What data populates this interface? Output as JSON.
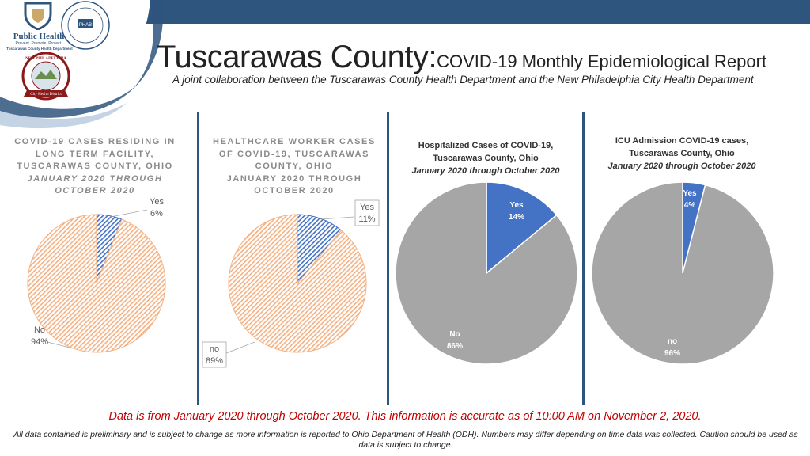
{
  "header": {
    "title_main": "Tuscarawas County:",
    "title_sub": "COVID-19 Monthly Epidemiological Report",
    "subtitle": "A joint collaboration between the Tuscarawas County Health Department and the New Philadelphia City Health Department"
  },
  "logos": {
    "tchd_name": "Public Health",
    "tchd_tagline": "Prevent. Promote. Protect.",
    "tchd_department": "Tuscarawas County Health Department",
    "phab_text": "PHAB",
    "nphd_name": "NEW PHILADELPHIA",
    "nphd_banner": "City Health District"
  },
  "colors": {
    "topbar": "#2e557e",
    "blue": "#4472c4",
    "orange": "#f4b183",
    "grey": "#a6a6a6",
    "red": "#c00000"
  },
  "chart_data": [
    {
      "type": "pie",
      "title_lines": [
        "COVID-19 CASES RESIDING IN",
        "LONG TERM FACILITY,",
        "TUSCARAWAS COUNTY, OHIO"
      ],
      "subtitle_lines": [
        "JANUARY 2020 THROUGH",
        "OCTOBER 2020"
      ],
      "categories": [
        "Yes",
        "No"
      ],
      "values": [
        6,
        94
      ],
      "labels": [
        [
          "Yes",
          "6%"
        ],
        [
          "No",
          "94%"
        ]
      ],
      "colors": [
        "#4472c4",
        "#f4b183"
      ]
    },
    {
      "type": "pie",
      "title_lines": [
        "HEALTHCARE WORKER CASES",
        "OF COVID-19, TUSCARAWAS",
        "COUNTY, OHIO"
      ],
      "subtitle_lines": [
        "JANUARY 2020 THROUGH",
        "OCTOBER 2020"
      ],
      "categories": [
        "Yes",
        "no"
      ],
      "values": [
        11,
        89
      ],
      "labels": [
        [
          "Yes",
          "11%"
        ],
        [
          "no",
          "89%"
        ]
      ],
      "colors": [
        "#4472c4",
        "#f4b183"
      ]
    },
    {
      "type": "pie",
      "title_lines": [
        "Hospitalized Cases of COVID-19,",
        "Tuscarawas County, Ohio"
      ],
      "subtitle_lines": [
        "January 2020 through October 2020"
      ],
      "categories": [
        "Yes",
        "No"
      ],
      "values": [
        14,
        86
      ],
      "labels": [
        [
          "Yes",
          "14%"
        ],
        [
          "No",
          "86%"
        ]
      ],
      "colors": [
        "#4472c4",
        "#a6a6a6"
      ]
    },
    {
      "type": "pie",
      "title_lines": [
        "ICU Admission COVID-19 cases,",
        "Tuscarawas County, Ohio"
      ],
      "subtitle_lines": [
        "January 2020 through October 2020"
      ],
      "categories": [
        "Yes",
        "no"
      ],
      "values": [
        4,
        96
      ],
      "labels": [
        [
          "Yes",
          "4%"
        ],
        [
          "no",
          "96%"
        ]
      ],
      "colors": [
        "#4472c4",
        "#a6a6a6"
      ]
    }
  ],
  "footer": {
    "accuracy_note": "Data is from January 2020 through October 2020. This information is accurate as of 10:00 AM on November 2, 2020.",
    "disclaimer": "All data contained is preliminary and is subject to change as more information is reported to Ohio Department of Health (ODH). Numbers may differ depending on time data was collected. Caution should be used as data is subject to change."
  }
}
